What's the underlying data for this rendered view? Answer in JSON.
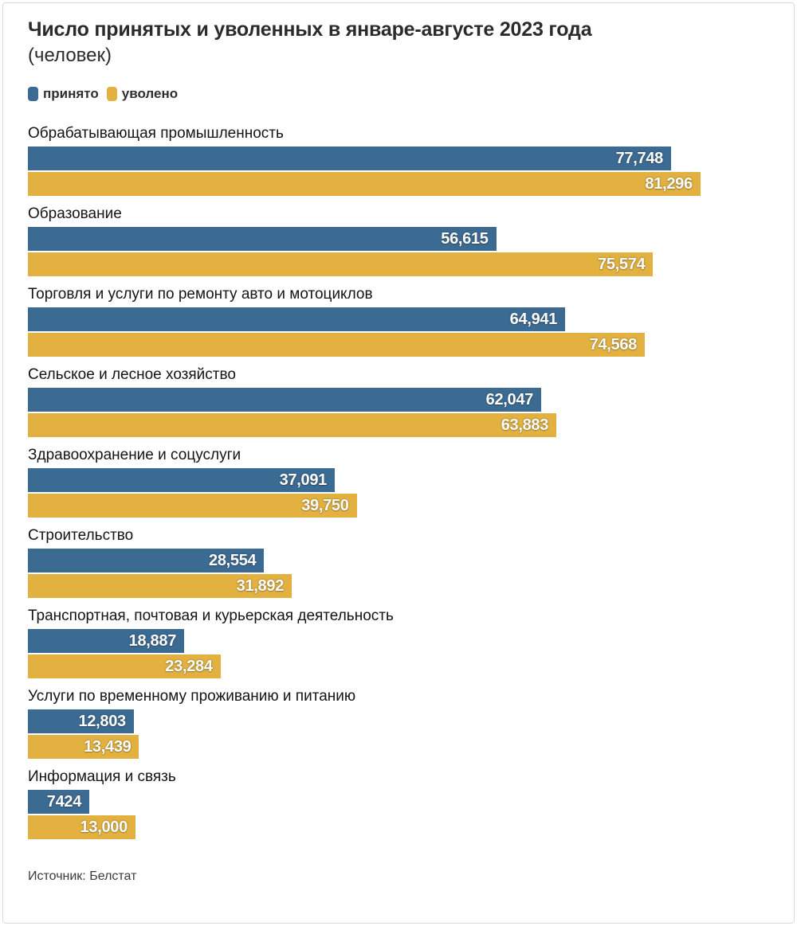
{
  "header": {
    "title_bold": "Число принятых и уволенных в январе-августе 2023 года",
    "title_regular": "(человек)"
  },
  "legend": [
    {
      "label": "принято",
      "color": "#3b6a93"
    },
    {
      "label": "уволено",
      "color": "#e2b13f"
    }
  ],
  "footer": {
    "source": "Источник: Белстат"
  },
  "chart_data": {
    "type": "bar",
    "orientation": "horizontal",
    "title": "Число принятых и уволенных в январе-августе 2023 года (человек)",
    "series_names": [
      "принято",
      "уволено"
    ],
    "colors": {
      "hired": "#3b6a93",
      "fired": "#e2b13f"
    },
    "value_labels": "inside-end, white bold",
    "grid": false,
    "legend_position": "top-left",
    "xlim": [
      0,
      89600
    ],
    "categories": [
      "Обрабатывающая промышленность",
      "Образование",
      "Торговля и услуги по ремонту авто и мотоциклов",
      "Сельское и лесное хозяйство",
      "Здравоохранение и соцуслуги",
      "Строительство",
      "Транспортная, почтовая и курьерская деятельность",
      "Услуги по временному проживанию и питанию",
      "Информация и связь"
    ],
    "groups": [
      {
        "category": "Обрабатывающая промышленность",
        "hired": 77748,
        "hired_label": "77,748",
        "fired": 81296,
        "fired_label": "81,296"
      },
      {
        "category": "Образование",
        "hired": 56615,
        "hired_label": "56,615",
        "fired": 75574,
        "fired_label": "75,574"
      },
      {
        "category": "Торговля и услуги по ремонту авто и мотоциклов",
        "hired": 64941,
        "hired_label": "64,941",
        "fired": 74568,
        "fired_label": "74,568"
      },
      {
        "category": "Сельское и лесное хозяйство",
        "hired": 62047,
        "hired_label": "62,047",
        "fired": 63883,
        "fired_label": "63,883"
      },
      {
        "category": "Здравоохранение и соцуслуги",
        "hired": 37091,
        "hired_label": "37,091",
        "fired": 39750,
        "fired_label": "39,750"
      },
      {
        "category": "Строительство",
        "hired": 28554,
        "hired_label": "28,554",
        "fired": 31892,
        "fired_label": "31,892"
      },
      {
        "category": "Транспортная, почтовая и курьерская деятельность",
        "hired": 18887,
        "hired_label": "18,887",
        "fired": 23284,
        "fired_label": "23,284"
      },
      {
        "category": "Услуги по временному проживанию и питанию",
        "hired": 12803,
        "hired_label": "12,803",
        "fired": 13439,
        "fired_label": "13,439"
      },
      {
        "category": "Информация и связь",
        "hired": 7424,
        "hired_label": "7424",
        "fired": 13000,
        "fired_label": "13,000"
      }
    ]
  }
}
